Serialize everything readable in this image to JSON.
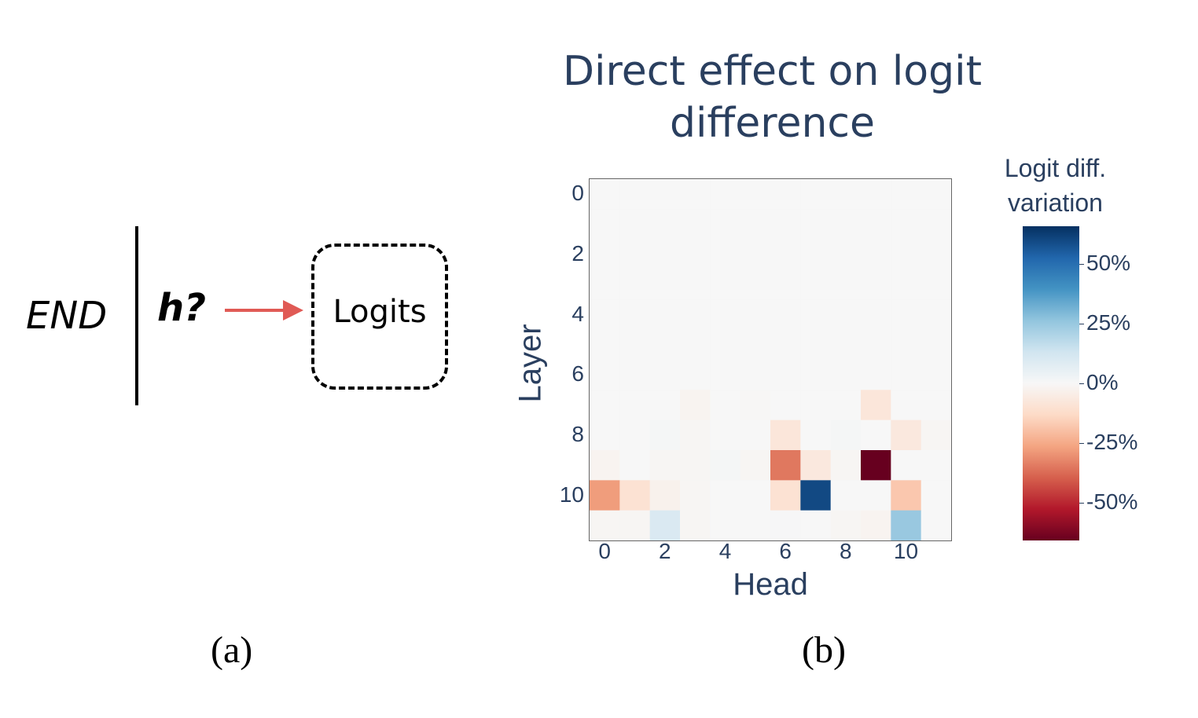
{
  "panel_a": {
    "token": "END",
    "head": "h?",
    "target": "Logits",
    "caption": "(a)",
    "arrow_color": "#e05a55"
  },
  "panel_b": {
    "caption": "(b)"
  },
  "chart_data": {
    "type": "heatmap",
    "title": "Direct effect on logit difference",
    "title_lines": [
      "Direct effect on logit",
      "difference"
    ],
    "xlabel": "Head",
    "ylabel": "Layer",
    "x_ticks": [
      "0",
      "2",
      "4",
      "6",
      "8",
      "10"
    ],
    "y_ticks": [
      "0",
      "2",
      "4",
      "6",
      "8",
      "10"
    ],
    "colorbar": {
      "title_lines": [
        "Logit diff.",
        "variation"
      ],
      "ticks": [
        "50%",
        "25%",
        "0%",
        "-25%",
        "-50%"
      ],
      "range": [
        -66,
        66
      ],
      "colorscale": "RdBu"
    },
    "z": [
      [
        0,
        0,
        0,
        0,
        0,
        0,
        0,
        0,
        0,
        0,
        0,
        0
      ],
      [
        0,
        0,
        0,
        0,
        0,
        0,
        0,
        0,
        0,
        0,
        0,
        0
      ],
      [
        0,
        0,
        0,
        0,
        0,
        0,
        0,
        0,
        0,
        0,
        0,
        0
      ],
      [
        0,
        0,
        0,
        0,
        0,
        0,
        0,
        0,
        0,
        0,
        0,
        0
      ],
      [
        0,
        0,
        0,
        0,
        0,
        0,
        0,
        0,
        0,
        0,
        0,
        0
      ],
      [
        0,
        0,
        0,
        0,
        0,
        0,
        0,
        0,
        0,
        0,
        0,
        0
      ],
      [
        0,
        0,
        0,
        0,
        0,
        0,
        0,
        0,
        0,
        0,
        0,
        0
      ],
      [
        0,
        0,
        0,
        -2,
        0,
        -0.5,
        0,
        0,
        0,
        -8,
        0,
        0
      ],
      [
        0,
        0,
        1,
        -1,
        0,
        0,
        -8,
        0,
        1,
        0,
        -7,
        -1
      ],
      [
        -2,
        0,
        -1,
        -1,
        1,
        -1,
        -35,
        -7,
        -1,
        -66,
        0,
        0
      ],
      [
        -28,
        -10,
        -3,
        -1,
        0,
        0,
        -10,
        60,
        0,
        0,
        -18,
        0
      ],
      [
        -1,
        -1,
        10,
        -1,
        0,
        0,
        0.5,
        0,
        -1,
        -2,
        25,
        0
      ]
    ]
  }
}
